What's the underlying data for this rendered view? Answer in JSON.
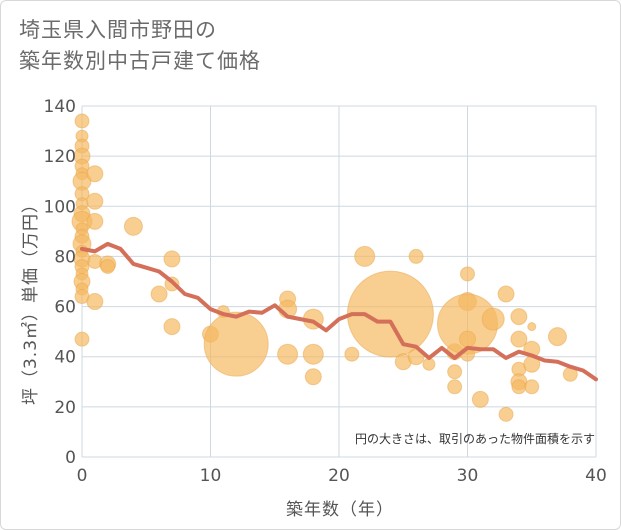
{
  "title_lines": [
    "埼玉県入間市野田の",
    "築年数別中古戸建て価格"
  ],
  "colors": {
    "bubble": "#f5b963",
    "bubble_edge": "#eaa84c",
    "line": "#d4705a",
    "grid": "#cfd8e0",
    "text": "#555555"
  },
  "chart_data": {
    "type": "scatter",
    "title": "埼玉県入間市野田の築年数別中古戸建て価格",
    "xlabel": "築年数（年）",
    "ylabel": "坪（3.3㎡）単価（万円）",
    "xlim": [
      0,
      40
    ],
    "ylim": [
      0,
      140
    ],
    "xticks": [
      0,
      10,
      20,
      30,
      40
    ],
    "yticks": [
      0,
      20,
      40,
      60,
      80,
      100,
      120,
      140
    ],
    "grid": true,
    "note": "円の大きさは、取引のあった物件面積を示す",
    "series": [
      {
        "kind": "bubble",
        "points": [
          {
            "x": 0,
            "y": 134,
            "r": 7
          },
          {
            "x": 0,
            "y": 128,
            "r": 6
          },
          {
            "x": 0,
            "y": 124,
            "r": 7
          },
          {
            "x": 0,
            "y": 120,
            "r": 8
          },
          {
            "x": 0,
            "y": 116,
            "r": 7
          },
          {
            "x": 0,
            "y": 113,
            "r": 6
          },
          {
            "x": 0,
            "y": 110,
            "r": 9
          },
          {
            "x": 0,
            "y": 105,
            "r": 7
          },
          {
            "x": 0,
            "y": 101,
            "r": 6
          },
          {
            "x": 0,
            "y": 97,
            "r": 8
          },
          {
            "x": 0,
            "y": 94,
            "r": 10
          },
          {
            "x": 0,
            "y": 91,
            "r": 6
          },
          {
            "x": 0,
            "y": 88,
            "r": 7
          },
          {
            "x": 0,
            "y": 85,
            "r": 9
          },
          {
            "x": 0,
            "y": 82,
            "r": 6
          },
          {
            "x": 0,
            "y": 79,
            "r": 8
          },
          {
            "x": 0,
            "y": 76,
            "r": 7
          },
          {
            "x": 0,
            "y": 73,
            "r": 6
          },
          {
            "x": 0,
            "y": 70,
            "r": 8
          },
          {
            "x": 0,
            "y": 67,
            "r": 6
          },
          {
            "x": 0,
            "y": 64,
            "r": 7
          },
          {
            "x": 0,
            "y": 47,
            "r": 7
          },
          {
            "x": 1,
            "y": 113,
            "r": 8
          },
          {
            "x": 1,
            "y": 102,
            "r": 8
          },
          {
            "x": 1,
            "y": 94,
            "r": 8
          },
          {
            "x": 1,
            "y": 78,
            "r": 7
          },
          {
            "x": 1,
            "y": 62,
            "r": 8
          },
          {
            "x": 2,
            "y": 77,
            "r": 8
          },
          {
            "x": 2,
            "y": 76,
            "r": 7
          },
          {
            "x": 4,
            "y": 92,
            "r": 9
          },
          {
            "x": 6,
            "y": 65,
            "r": 8
          },
          {
            "x": 7,
            "y": 79,
            "r": 8
          },
          {
            "x": 7,
            "y": 69,
            "r": 7
          },
          {
            "x": 7,
            "y": 52,
            "r": 8
          },
          {
            "x": 10,
            "y": 49,
            "r": 8
          },
          {
            "x": 11,
            "y": 58,
            "r": 6
          },
          {
            "x": 12,
            "y": 45,
            "r": 32
          },
          {
            "x": 16,
            "y": 63,
            "r": 8
          },
          {
            "x": 16,
            "y": 59,
            "r": 9
          },
          {
            "x": 16,
            "y": 41,
            "r": 10
          },
          {
            "x": 18,
            "y": 55,
            "r": 10
          },
          {
            "x": 18,
            "y": 41,
            "r": 10
          },
          {
            "x": 18,
            "y": 32,
            "r": 8
          },
          {
            "x": 21,
            "y": 41,
            "r": 7
          },
          {
            "x": 22,
            "y": 80,
            "r": 10
          },
          {
            "x": 24,
            "y": 57,
            "r": 43
          },
          {
            "x": 25,
            "y": 38,
            "r": 8
          },
          {
            "x": 26,
            "y": 80,
            "r": 7
          },
          {
            "x": 26,
            "y": 40,
            "r": 8
          },
          {
            "x": 27,
            "y": 37,
            "r": 6
          },
          {
            "x": 29,
            "y": 42,
            "r": 8
          },
          {
            "x": 29,
            "y": 34,
            "r": 7
          },
          {
            "x": 29,
            "y": 28,
            "r": 7
          },
          {
            "x": 30,
            "y": 73,
            "r": 7
          },
          {
            "x": 30,
            "y": 62,
            "r": 9
          },
          {
            "x": 30,
            "y": 53,
            "r": 30
          },
          {
            "x": 30,
            "y": 47,
            "r": 8
          },
          {
            "x": 30,
            "y": 41,
            "r": 7
          },
          {
            "x": 31,
            "y": 23,
            "r": 8
          },
          {
            "x": 32,
            "y": 55,
            "r": 11
          },
          {
            "x": 33,
            "y": 65,
            "r": 8
          },
          {
            "x": 33,
            "y": 17,
            "r": 7
          },
          {
            "x": 34,
            "y": 56,
            "r": 8
          },
          {
            "x": 34,
            "y": 47,
            "r": 8
          },
          {
            "x": 34,
            "y": 35,
            "r": 7
          },
          {
            "x": 34,
            "y": 30,
            "r": 8
          },
          {
            "x": 34,
            "y": 28,
            "r": 7
          },
          {
            "x": 35,
            "y": 52,
            "r": 4
          },
          {
            "x": 35,
            "y": 43,
            "r": 8
          },
          {
            "x": 35,
            "y": 37,
            "r": 8
          },
          {
            "x": 35,
            "y": 28,
            "r": 7
          },
          {
            "x": 37,
            "y": 48,
            "r": 9
          },
          {
            "x": 38,
            "y": 33,
            "r": 7
          }
        ]
      },
      {
        "kind": "line",
        "points": [
          {
            "x": 0,
            "y": 83
          },
          {
            "x": 1,
            "y": 82
          },
          {
            "x": 2,
            "y": 85
          },
          {
            "x": 3,
            "y": 83
          },
          {
            "x": 4,
            "y": 77
          },
          {
            "x": 5,
            "y": 75.5
          },
          {
            "x": 6,
            "y": 74
          },
          {
            "x": 7,
            "y": 70
          },
          {
            "x": 8,
            "y": 65
          },
          {
            "x": 9,
            "y": 63.5
          },
          {
            "x": 10,
            "y": 59
          },
          {
            "x": 11,
            "y": 57
          },
          {
            "x": 12,
            "y": 56
          },
          {
            "x": 13,
            "y": 58
          },
          {
            "x": 14,
            "y": 57.5
          },
          {
            "x": 15,
            "y": 60.5
          },
          {
            "x": 16,
            "y": 56
          },
          {
            "x": 17,
            "y": 55
          },
          {
            "x": 18,
            "y": 54
          },
          {
            "x": 19,
            "y": 50.5
          },
          {
            "x": 20,
            "y": 55
          },
          {
            "x": 21,
            "y": 57
          },
          {
            "x": 22,
            "y": 57
          },
          {
            "x": 23,
            "y": 54
          },
          {
            "x": 24,
            "y": 54
          },
          {
            "x": 25,
            "y": 45
          },
          {
            "x": 26,
            "y": 44
          },
          {
            "x": 27,
            "y": 39.5
          },
          {
            "x": 28,
            "y": 43.5
          },
          {
            "x": 29,
            "y": 39.5
          },
          {
            "x": 30,
            "y": 43.5
          },
          {
            "x": 31,
            "y": 43
          },
          {
            "x": 32,
            "y": 43
          },
          {
            "x": 33,
            "y": 39.5
          },
          {
            "x": 34,
            "y": 42
          },
          {
            "x": 35,
            "y": 40.5
          },
          {
            "x": 36,
            "y": 38.5
          },
          {
            "x": 37,
            "y": 38
          },
          {
            "x": 38,
            "y": 36
          },
          {
            "x": 39,
            "y": 34.5
          },
          {
            "x": 40,
            "y": 31
          }
        ]
      }
    ]
  }
}
